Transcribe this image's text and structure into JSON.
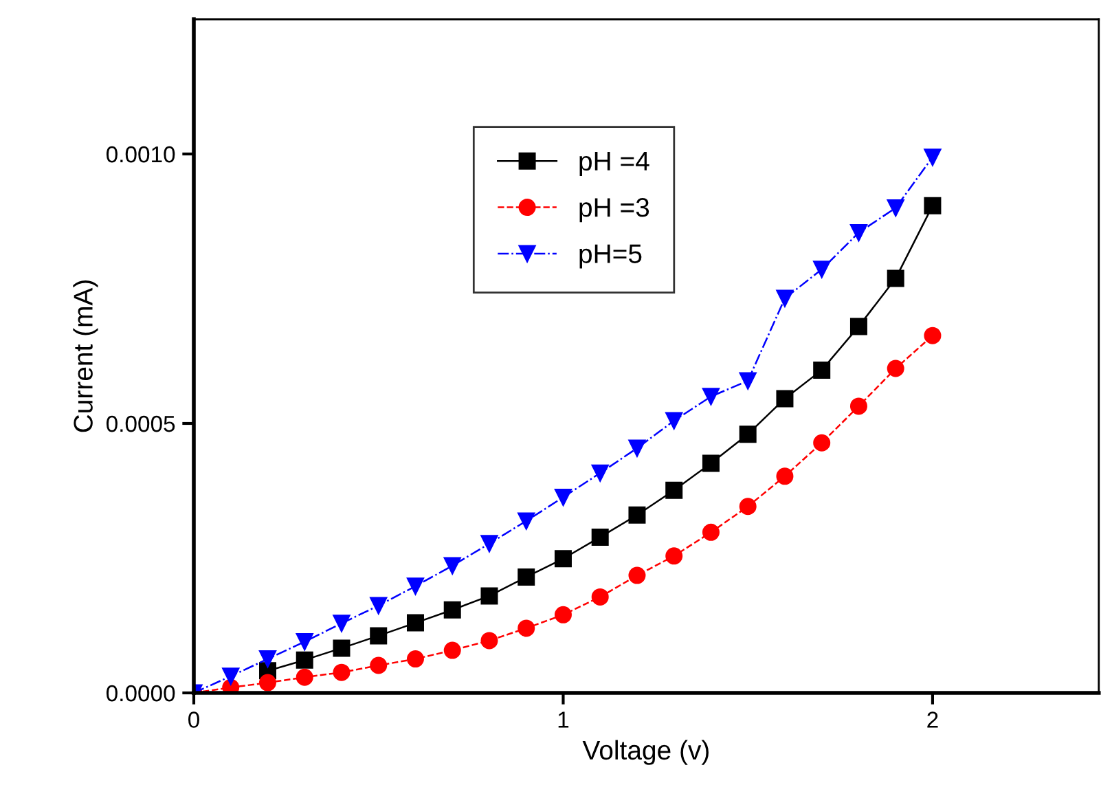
{
  "chart_data": {
    "type": "line",
    "xlabel": "Voltage (v)",
    "ylabel": "Current (mA)",
    "x": [
      0,
      0.1,
      0.2,
      0.3,
      0.4,
      0.5,
      0.6,
      0.7,
      0.8,
      0.9,
      1.0,
      1.1,
      1.2,
      1.3,
      1.4,
      1.5,
      1.6,
      1.7,
      1.8,
      1.9,
      2.0
    ],
    "series": [
      {
        "name": "pH =4",
        "color": "#000000",
        "marker": "square",
        "line_style": "solid",
        "values": [
          null,
          null,
          4.1e-05,
          6.1e-05,
          8.3e-05,
          0.000106,
          0.00013,
          0.000154,
          0.00018,
          0.000215,
          0.000249,
          0.000289,
          0.00033,
          0.000376,
          0.000426,
          0.00048,
          0.000546,
          0.000599,
          0.00068,
          0.000769,
          0.000904
        ]
      },
      {
        "name": "pH =3",
        "color": "#ff0000",
        "marker": "circle",
        "line_style": "dashed",
        "values": [
          0,
          1e-05,
          1.9e-05,
          2.9e-05,
          3.8e-05,
          5.1e-05,
          6.3e-05,
          7.9e-05,
          9.7e-05,
          0.00012,
          0.000145,
          0.000178,
          0.000218,
          0.000254,
          0.000298,
          0.000346,
          0.000402,
          0.000464,
          0.000532,
          0.000602,
          0.000663
        ]
      },
      {
        "name": "pH=5",
        "color": "#0000ff",
        "marker": "triangle",
        "line_style": "dashdot",
        "values": [
          0,
          3.1e-05,
          6.3e-05,
          9.5e-05,
          0.000129,
          0.000162,
          0.000198,
          0.000236,
          0.000277,
          0.000319,
          0.000363,
          0.000408,
          0.000454,
          0.000505,
          0.00055,
          0.000579,
          0.000732,
          0.000786,
          0.000854,
          0.0009,
          0.000994
        ]
      }
    ],
    "xlim": [
      0,
      2.45
    ],
    "xticks": [
      0,
      1,
      2
    ],
    "ylim": [
      0,
      0.00125
    ],
    "yticks": [
      {
        "value": 0,
        "label": "0.0000"
      },
      {
        "value": 0.0005,
        "label": "0.0005"
      },
      {
        "value": 0.001,
        "label": "0.0010"
      }
    ],
    "legend": "top",
    "grid": false
  }
}
